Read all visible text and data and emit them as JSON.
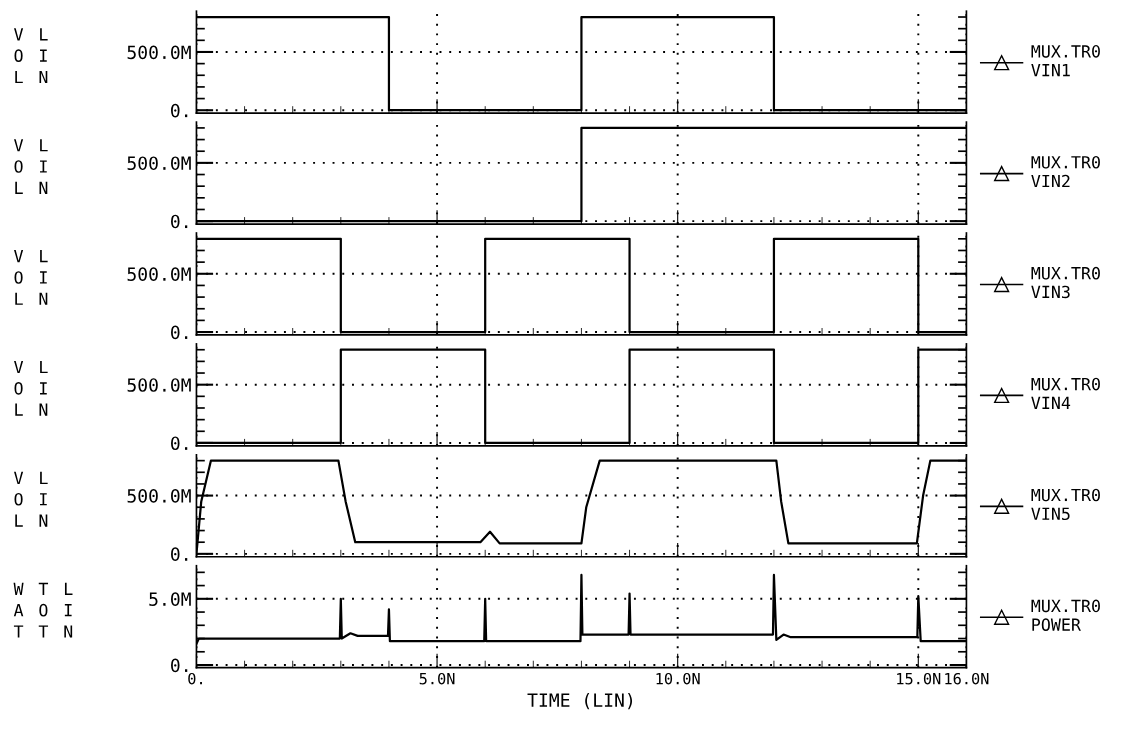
{
  "chart_data": [
    {
      "type": "line",
      "ylabel": "VOL LIN",
      "xlim": [
        0,
        16
      ],
      "xticks": [
        {
          "value": 0,
          "label": null
        },
        {
          "value": 5,
          "label": null
        },
        {
          "value": 10,
          "label": null
        },
        {
          "value": 15,
          "label": null
        },
        {
          "value": 16,
          "label": null
        }
      ],
      "ylim": [
        -25,
        850
      ],
      "yticks": [
        {
          "value": 0,
          "label": "0."
        },
        {
          "value": 500,
          "label": "500.0M"
        }
      ],
      "tick_labels": "y",
      "grid": true,
      "legend": "right",
      "line_style": "solid",
      "series": [
        {
          "name": "MUX.TR0\nVIN1",
          "color": "#000000",
          "x": [
            0,
            4,
            4,
            8,
            8,
            12,
            12,
            16
          ],
          "values": [
            800,
            800,
            0,
            0,
            800,
            800,
            0,
            0
          ]
        }
      ]
    },
    {
      "type": "line",
      "ylabel": "VOL LIN",
      "xlim": [
        0,
        16
      ],
      "xticks": [
        {
          "value": 0,
          "label": null
        },
        {
          "value": 5,
          "label": null
        },
        {
          "value": 10,
          "label": null
        },
        {
          "value": 15,
          "label": null
        },
        {
          "value": 16,
          "label": null
        }
      ],
      "ylim": [
        -25,
        850
      ],
      "yticks": [
        {
          "value": 0,
          "label": "0."
        },
        {
          "value": 500,
          "label": "500.0M"
        }
      ],
      "tick_labels": "y",
      "grid": true,
      "legend": "right",
      "line_style": "solid",
      "series": [
        {
          "name": "MUX.TR0\nVIN2",
          "color": "#000000",
          "x": [
            0,
            8,
            8,
            16
          ],
          "values": [
            0,
            0,
            800,
            800
          ]
        }
      ]
    },
    {
      "type": "line",
      "ylabel": "VOL LIN",
      "xlim": [
        0,
        16
      ],
      "xticks": [
        {
          "value": 0,
          "label": null
        },
        {
          "value": 5,
          "label": null
        },
        {
          "value": 10,
          "label": null
        },
        {
          "value": 15,
          "label": null
        },
        {
          "value": 16,
          "label": null
        }
      ],
      "ylim": [
        -25,
        850
      ],
      "yticks": [
        {
          "value": 0,
          "label": "0."
        },
        {
          "value": 500,
          "label": "500.0M"
        }
      ],
      "tick_labels": "y",
      "grid": true,
      "legend": "right",
      "line_style": "solid",
      "series": [
        {
          "name": "MUX.TR0\nVIN3",
          "color": "#000000",
          "x": [
            0,
            3,
            3,
            6,
            6,
            9,
            9,
            12,
            12,
            15,
            15,
            16
          ],
          "values": [
            800,
            800,
            0,
            0,
            800,
            800,
            0,
            0,
            800,
            800,
            0,
            0
          ]
        }
      ]
    },
    {
      "type": "line",
      "ylabel": "VOL LIN",
      "xlim": [
        0,
        16
      ],
      "xticks": [
        {
          "value": 0,
          "label": null
        },
        {
          "value": 5,
          "label": null
        },
        {
          "value": 10,
          "label": null
        },
        {
          "value": 15,
          "label": null
        },
        {
          "value": 16,
          "label": null
        }
      ],
      "ylim": [
        -25,
        850
      ],
      "yticks": [
        {
          "value": 0,
          "label": "0."
        },
        {
          "value": 500,
          "label": "500.0M"
        }
      ],
      "tick_labels": "y",
      "grid": true,
      "legend": "right",
      "line_style": "solid",
      "series": [
        {
          "name": "MUX.TR0\nVIN4",
          "color": "#000000",
          "x": [
            0,
            3,
            3,
            6,
            6,
            9,
            9,
            12,
            12,
            15,
            15,
            16
          ],
          "values": [
            0,
            0,
            800,
            800,
            0,
            0,
            800,
            800,
            0,
            0,
            800,
            800
          ]
        }
      ]
    },
    {
      "type": "line",
      "ylabel": "VOL LIN",
      "xlim": [
        0,
        16
      ],
      "xticks": [
        {
          "value": 0,
          "label": null
        },
        {
          "value": 5,
          "label": null
        },
        {
          "value": 10,
          "label": null
        },
        {
          "value": 15,
          "label": null
        },
        {
          "value": 16,
          "label": null
        }
      ],
      "ylim": [
        -25,
        850
      ],
      "yticks": [
        {
          "value": 0,
          "label": "0."
        },
        {
          "value": 500,
          "label": "500.0M"
        }
      ],
      "tick_labels": "y",
      "grid": true,
      "legend": "right",
      "line_style": "solid",
      "series": [
        {
          "name": "MUX.TR0\nVIN5",
          "color": "#000000",
          "x": [
            0,
            0.1,
            0.3,
            2.95,
            3.1,
            3.3,
            5.9,
            6.1,
            6.3,
            8.0,
            8.1,
            8.38,
            12.05,
            12.15,
            12.3,
            14.97,
            15.1,
            15.25,
            16
          ],
          "values": [
            0,
            450,
            800,
            800,
            450,
            100,
            100,
            190,
            90,
            90,
            400,
            800,
            800,
            450,
            90,
            90,
            500,
            800,
            800
          ]
        }
      ]
    },
    {
      "type": "line",
      "ylabel": "WAT TOT LIN",
      "xlabel": "TIME (LIN)",
      "xlim": [
        0,
        16
      ],
      "xticks": [
        {
          "value": 0,
          "label": "0."
        },
        {
          "value": 5,
          "label": "5.0N"
        },
        {
          "value": 10,
          "label": "10.0N"
        },
        {
          "value": 15,
          "label": "15.0N"
        },
        {
          "value": 16,
          "label": "16.0N"
        }
      ],
      "ylim": [
        -0.2,
        7.5
      ],
      "yticks": [
        {
          "value": 0,
          "label": "0."
        },
        {
          "value": 5,
          "label": "5.0M"
        }
      ],
      "grid": true,
      "legend": "right",
      "line_style": "solid",
      "series": [
        {
          "name": "MUX.TR0\nPOWER",
          "color": "#000000",
          "x": [
            0,
            0.05,
            2.98,
            3.0,
            3.02,
            3.2,
            3.35,
            3.98,
            4.0,
            4.02,
            5.98,
            6.0,
            6.02,
            7.98,
            8.0,
            8.02,
            8.98,
            9.0,
            9.02,
            11.98,
            12.0,
            12.05,
            12.2,
            12.35,
            14.98,
            15.0,
            15.05,
            16
          ],
          "values": [
            1.6,
            2.0,
            2.0,
            5.0,
            2.0,
            2.4,
            2.2,
            2.2,
            4.2,
            1.8,
            1.8,
            5.0,
            1.8,
            1.8,
            6.8,
            2.3,
            2.3,
            5.4,
            2.3,
            2.3,
            6.8,
            1.9,
            2.3,
            2.1,
            2.1,
            5.2,
            1.8,
            1.8
          ]
        }
      ]
    }
  ]
}
